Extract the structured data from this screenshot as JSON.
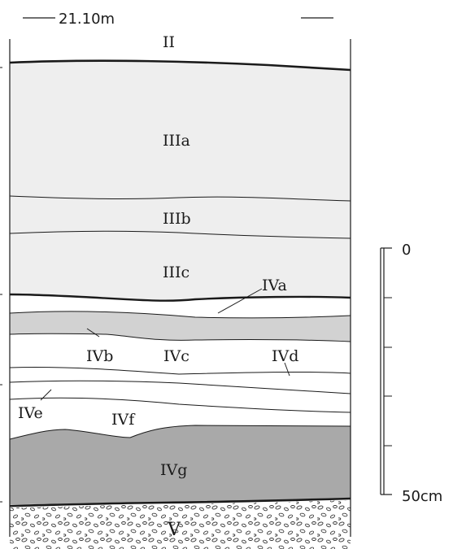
{
  "header": {
    "elevation": "21.10m"
  },
  "layers": {
    "II": "II",
    "IIIa": "IIIa",
    "IIIb": "IIIb",
    "IIIc": "IIIc",
    "IVa": "IVa",
    "IVb": "IVb",
    "IVc": "IVc",
    "IVd": "IVd",
    "IVe": "IVe",
    "IVf": "IVf",
    "IVg": "IVg",
    "V": "V"
  },
  "scale": {
    "top_label": "0",
    "bottom_label": "50cm"
  },
  "colors": {
    "layer_III": "#eeeeee",
    "layer_IVa_band": "#d2d2d2",
    "layer_IVg": "#a9a9a9",
    "line": "#1a1a1a"
  }
}
